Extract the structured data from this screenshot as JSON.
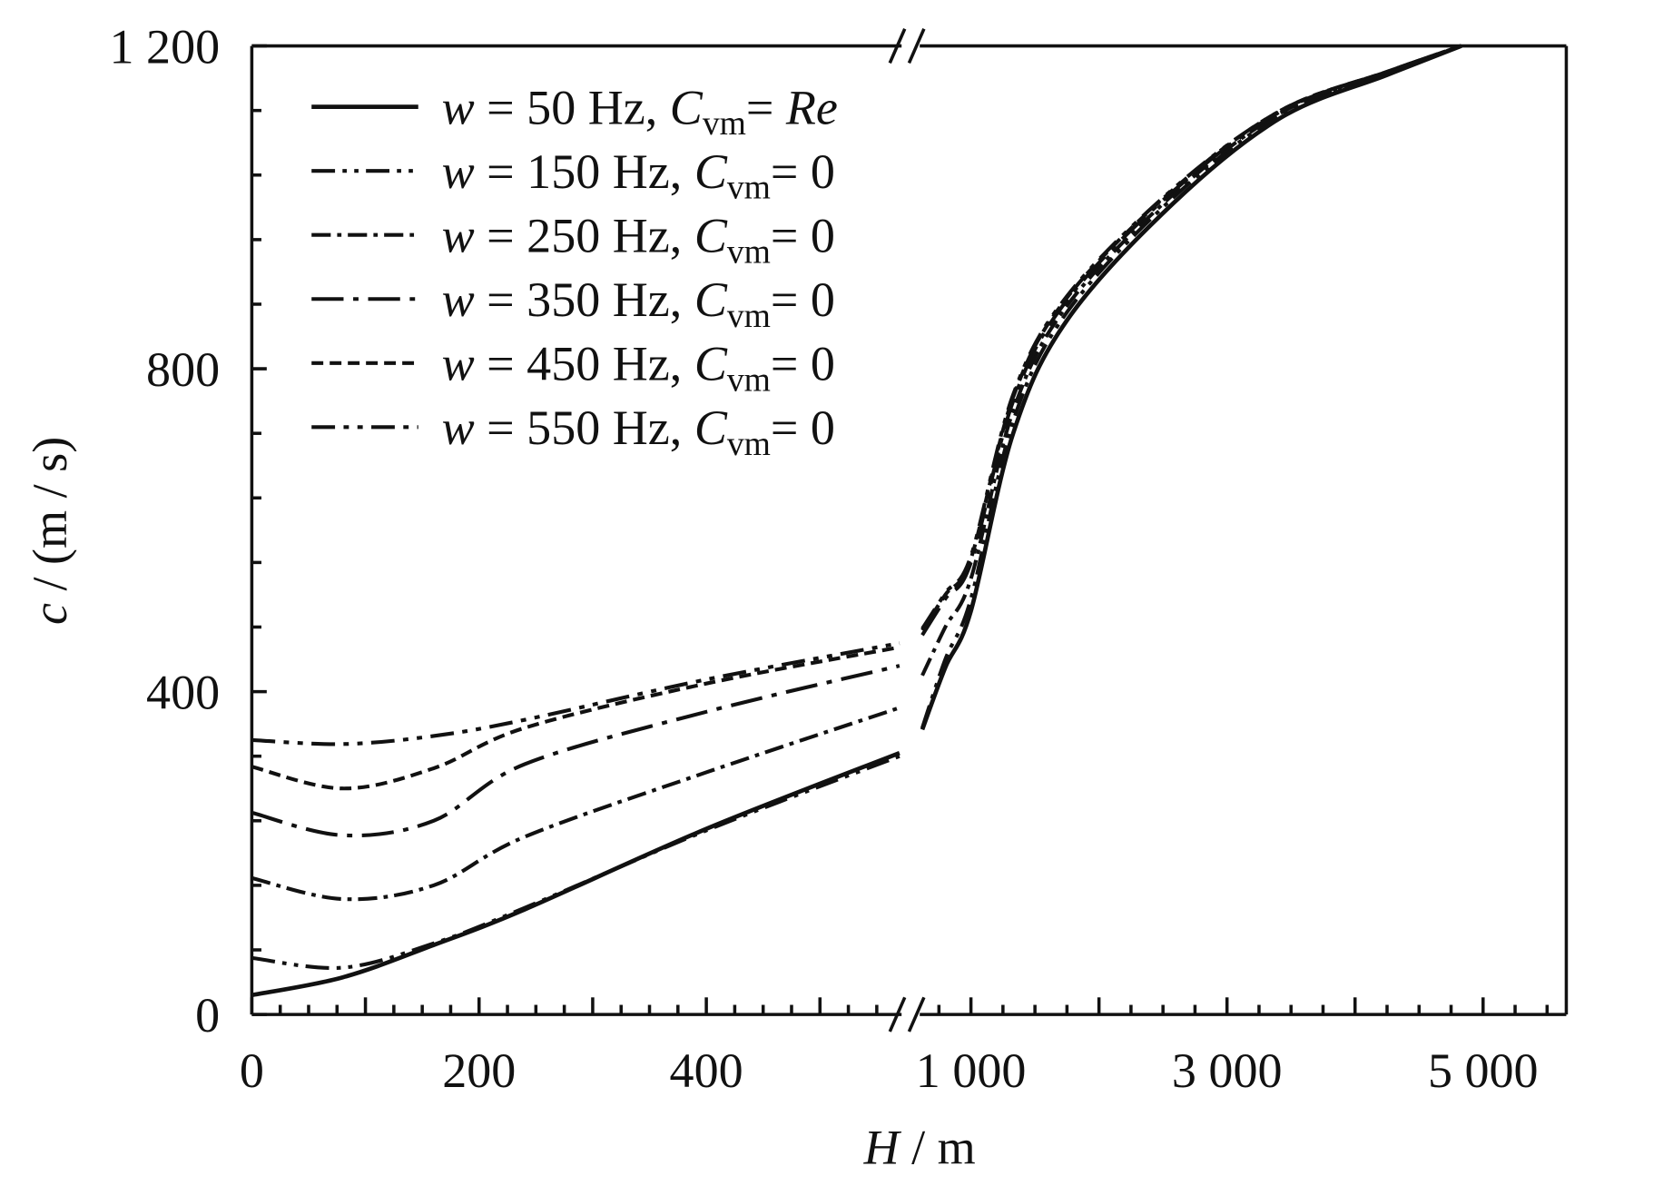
{
  "chart_data": {
    "type": "line",
    "title": "",
    "xlabel": {
      "var": "H",
      "unit": " / m"
    },
    "ylabel": {
      "var": "c",
      "unit": " / (m / s)"
    },
    "ylim": [
      0,
      1200
    ],
    "xlim_left": [
      0,
      570
    ],
    "xlim_right": [
      600,
      5600
    ],
    "axis_break": "x between left and right segments",
    "yticks": [
      {
        "value": 0,
        "label": "0"
      },
      {
        "value": 400,
        "label": "400"
      },
      {
        "value": 800,
        "label": "800"
      },
      {
        "value": 1200,
        "label": "1 200"
      }
    ],
    "xticks_left": [
      {
        "value": 0,
        "label": "0"
      },
      {
        "value": 200,
        "label": "200"
      },
      {
        "value": 400,
        "label": "400"
      }
    ],
    "xticks_right": [
      {
        "value": 1000,
        "label": "1 000"
      },
      {
        "value": 3000,
        "label": "3 000"
      },
      {
        "value": 5000,
        "label": "5 000"
      }
    ],
    "legend_position": "top-left",
    "series": [
      {
        "name": "w = 50 Hz, Cvm = Re",
        "freq": "50",
        "cvm": "Re",
        "style": "solid",
        "left": [
          [
            0,
            24
          ],
          [
            80,
            46
          ],
          [
            160,
            86
          ],
          [
            240,
            130
          ],
          [
            400,
            230
          ],
          [
            570,
            324
          ]
        ],
        "right": [
          [
            620,
            353
          ],
          [
            800,
            430
          ],
          [
            1000,
            500
          ],
          [
            1330,
            720
          ],
          [
            1750,
            860
          ],
          [
            2580,
            1005
          ],
          [
            3420,
            1111
          ],
          [
            4250,
            1164
          ],
          [
            4830,
            1200
          ]
        ]
      },
      {
        "name": "w = 150 Hz, Cvm = 0",
        "freq": "150",
        "cvm": "0",
        "style": "dash-dot-dot",
        "left": [
          [
            0,
            70
          ],
          [
            80,
            58
          ],
          [
            160,
            88
          ],
          [
            240,
            132
          ],
          [
            400,
            228
          ],
          [
            570,
            320
          ]
        ],
        "right": [
          [
            620,
            355
          ],
          [
            800,
            440
          ],
          [
            1000,
            515
          ],
          [
            1330,
            735
          ],
          [
            1750,
            870
          ],
          [
            2580,
            1012
          ],
          [
            3420,
            1115
          ],
          [
            4250,
            1166
          ],
          [
            4830,
            1200
          ]
        ]
      },
      {
        "name": "w = 250 Hz, Cvm = 0",
        "freq": "250",
        "cvm": "0",
        "style": "dash-dot",
        "left": [
          [
            0,
            169
          ],
          [
            80,
            143
          ],
          [
            160,
            160
          ],
          [
            240,
            220
          ],
          [
            400,
            300
          ],
          [
            570,
            380
          ]
        ],
        "right": [
          [
            620,
            420
          ],
          [
            800,
            480
          ],
          [
            1000,
            540
          ],
          [
            1330,
            748
          ],
          [
            1750,
            878
          ],
          [
            2580,
            1016
          ],
          [
            3420,
            1117
          ],
          [
            4250,
            1167
          ],
          [
            4830,
            1200
          ]
        ]
      },
      {
        "name": "w = 350 Hz, Cvm = 0",
        "freq": "350",
        "cvm": "0",
        "style": "long-dash-dot",
        "left": [
          [
            0,
            250
          ],
          [
            80,
            222
          ],
          [
            160,
            240
          ],
          [
            240,
            310
          ],
          [
            400,
            375
          ],
          [
            570,
            432
          ]
        ],
        "right": [
          [
            620,
            470
          ],
          [
            800,
            515
          ],
          [
            1000,
            560
          ],
          [
            1330,
            760
          ],
          [
            1750,
            885
          ],
          [
            2580,
            1020
          ],
          [
            3420,
            1119
          ],
          [
            4250,
            1168
          ],
          [
            4830,
            1200
          ]
        ]
      },
      {
        "name": "w = 450 Hz, Cvm = 0",
        "freq": "450",
        "cvm": "0",
        "style": "short-dash",
        "left": [
          [
            0,
            307
          ],
          [
            80,
            280
          ],
          [
            160,
            305
          ],
          [
            240,
            355
          ],
          [
            400,
            410
          ],
          [
            570,
            455
          ]
        ],
        "right": [
          [
            620,
            476
          ],
          [
            800,
            520
          ],
          [
            1000,
            565
          ],
          [
            1330,
            765
          ],
          [
            1750,
            888
          ],
          [
            2580,
            1022
          ],
          [
            3420,
            1120
          ],
          [
            4250,
            1168
          ],
          [
            4830,
            1200
          ]
        ]
      },
      {
        "name": "w = 550 Hz, Cvm = 0",
        "freq": "550",
        "cvm": "0",
        "style": "dash-dot-dot-heavy",
        "left": [
          [
            0,
            340
          ],
          [
            80,
            335
          ],
          [
            160,
            345
          ],
          [
            240,
            365
          ],
          [
            400,
            415
          ],
          [
            570,
            460
          ]
        ],
        "right": [
          [
            620,
            478
          ],
          [
            800,
            522
          ],
          [
            1000,
            568
          ],
          [
            1330,
            768
          ],
          [
            1750,
            890
          ],
          [
            2580,
            1023
          ],
          [
            3420,
            1120
          ],
          [
            4250,
            1168
          ],
          [
            4830,
            1200
          ]
        ]
      }
    ]
  }
}
